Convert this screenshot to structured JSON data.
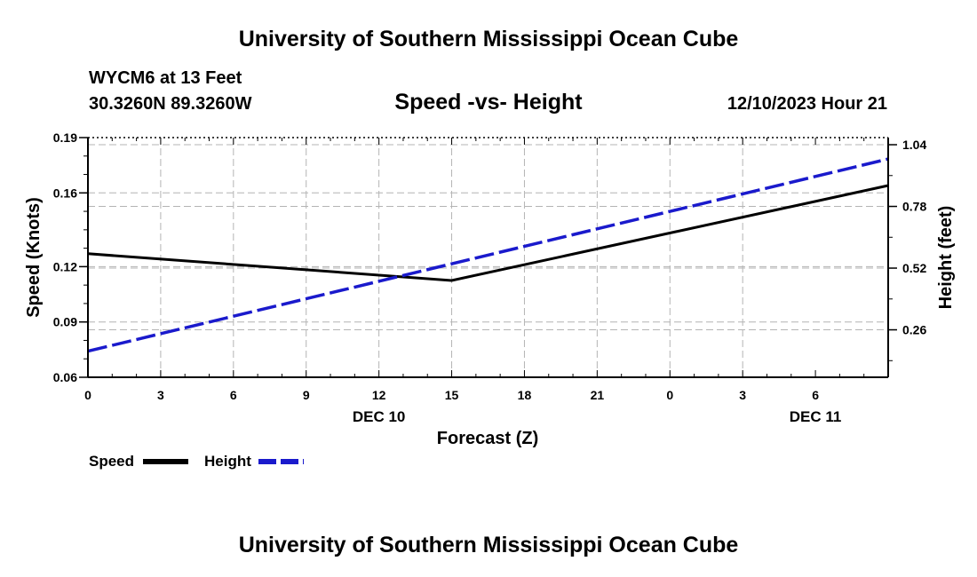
{
  "header": {
    "title": "University of Southern Mississippi Ocean Cube",
    "station": "WYCM6 at 13 Feet",
    "coords": "30.3260N  89.3260W",
    "date": "12/10/2023 Hour 21",
    "footer_title": "University of Southern Mississippi Ocean Cube"
  },
  "legend": {
    "speed_label": "Speed",
    "height_label": "Height"
  },
  "colors": {
    "speed": "#000000",
    "height": "#1a1acc",
    "grid": "#b4b4b4"
  },
  "chart_data": {
    "type": "line",
    "title": "Speed -vs- Height",
    "xlabel": "Forecast (Z)",
    "ylabel_left": "Speed (Knots)",
    "ylabel_right": "Height (feet)",
    "x_hours": [
      0,
      33
    ],
    "x_tick_labels": [
      "0",
      "3",
      "6",
      "9",
      "12",
      "15",
      "18",
      "21",
      "0",
      "3",
      "6"
    ],
    "x_date_labels": [
      {
        "label": "DEC 10",
        "hour": 12
      },
      {
        "label": "DEC 11",
        "hour": 30
      }
    ],
    "ylim_left": [
      0.06,
      0.19
    ],
    "left_tick_labels": [
      "0.06",
      "0.09",
      "0.12",
      "0.16",
      "0.19"
    ],
    "left_tick_values": [
      0.06,
      0.09,
      0.12,
      0.16,
      0.19
    ],
    "ylim_right": [
      0.06,
      1.07
    ],
    "right_tick_labels": [
      "0.26",
      "0.52",
      "0.78",
      "1.04"
    ],
    "right_tick_values": [
      0.26,
      0.52,
      0.78,
      1.04
    ],
    "grid": true,
    "series": [
      {
        "name": "Speed",
        "axis": "left",
        "style": "solid",
        "points": [
          [
            0,
            0.127
          ],
          [
            15,
            0.1125
          ],
          [
            33,
            0.164
          ]
        ]
      },
      {
        "name": "Height",
        "axis": "right",
        "style": "dashed",
        "points": [
          [
            0,
            0.17
          ],
          [
            33,
            0.98
          ]
        ]
      }
    ]
  }
}
